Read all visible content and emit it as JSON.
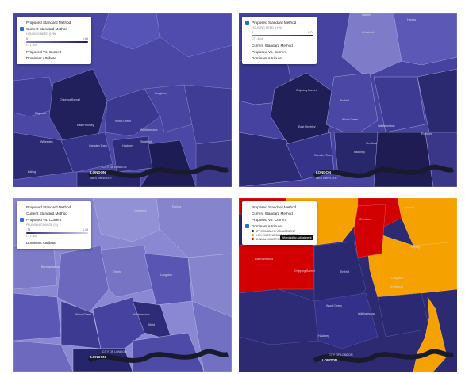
{
  "panels": [
    {
      "options": [
        "Proposed Standard Method",
        "Current Standard Method",
        "Proposed Vs. Current",
        "Dominant Attribute"
      ],
      "checked": "Current Standard Method",
      "scale": {
        "title": "HOUSING NEED (LHN)",
        "min": "0",
        "max": "1.56",
        "note": "CTL.Bcd"
      },
      "bar_color": "#1c1a63"
    },
    {
      "options": [
        "Proposed Standard Method",
        "Current Standard Method",
        "Proposed Vs. Current",
        "Dominant Attribute"
      ],
      "checked": "Proposed Standard Method",
      "scale": {
        "title": "HOUSING NEED (LHN)",
        "min": "0",
        "max": "0.74",
        "note": "CTL.Bcd"
      },
      "bar_color": "#1c1a63"
    },
    {
      "options": [
        "Proposed Standard Method",
        "Current Standard Method",
        "Proposed Vs. Current",
        "Dominant Attribute"
      ],
      "checked": "Proposed Vs. Current",
      "scale": {
        "title": "PLUS/MIN CHANGE (%)",
        "min": "-76",
        "max": "1.15",
        "note": "CTL.Bcd"
      },
      "bar_color": "#6a65c4"
    },
    {
      "options": [
        "Proposed Standard Method",
        "Current Standard Method",
        "Proposed Vs. Current",
        "Dominant Attribute"
      ],
      "checked": "Dominant Attribute",
      "categories": [
        {
          "label": "AFFORDABILITY ADJUSTMENT",
          "color": "#1b1a5c"
        },
        {
          "label": "0.5% EXISTING DWELLING STOCK",
          "color": "#f5a000"
        },
        {
          "label": "ANNUAL HOUSEHOLD GROWTH",
          "color": "#d00000"
        }
      ],
      "tooltip": "Affordability Adjustment"
    }
  ],
  "places": {
    "chipping_barnet": "Chipping Barnet",
    "enfield": "Enfield",
    "edgware": "Edgware",
    "loughton": "Loughton",
    "east_finchley": "East Finchley",
    "wood_green": "Wood Green",
    "walthamstow": "Walthamstow",
    "wembley": "Wembley",
    "hackney": "Hackney",
    "stratford": "Stratford",
    "camden_town": "Camden Town",
    "ealing": "Ealing",
    "willesden": "Willesden",
    "romford": "Romford",
    "ilford": "Ilford",
    "hornchurch": "Hornchurch",
    "borehamwood": "Borehamwood",
    "cheshunt": "Cheshunt",
    "epping": "Epping",
    "city_of_london": "CITY OF LONDON",
    "london": "LONDON",
    "westminster": "WESTMINSTER",
    "harlow": "Harlow",
    "hatfield": "Hatfield",
    "brentwood": "Brentwood",
    "watford": "Watford"
  }
}
